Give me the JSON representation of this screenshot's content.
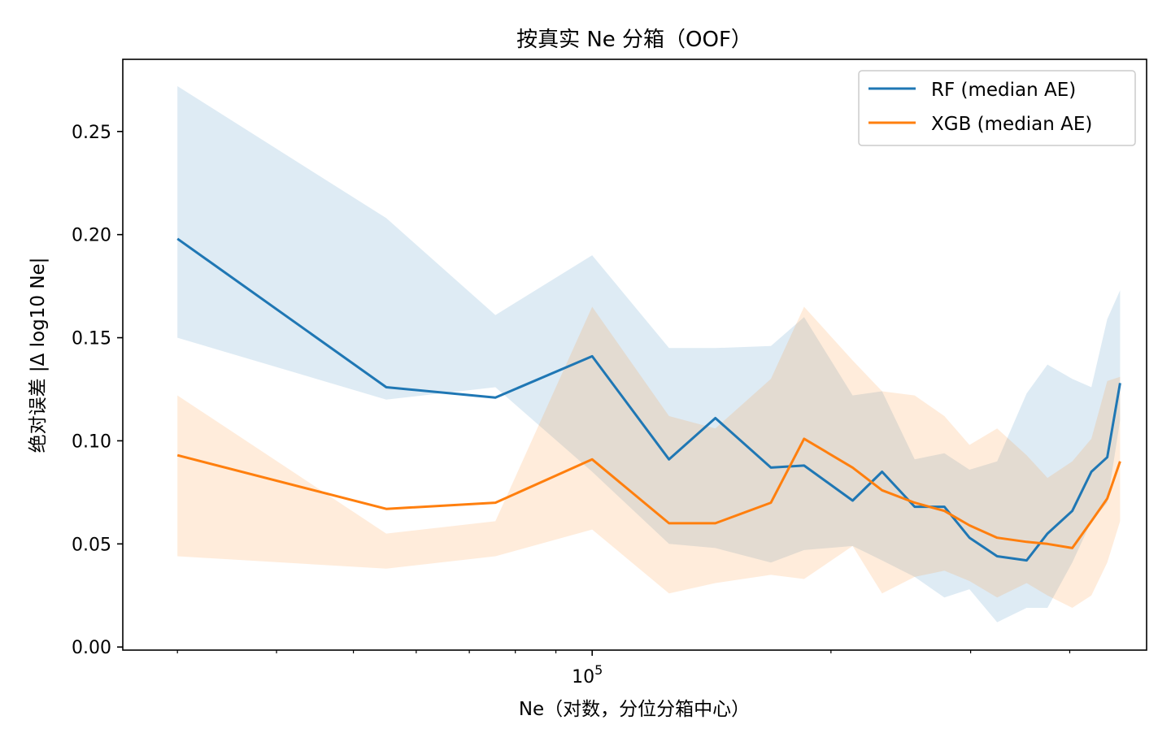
{
  "chart_data": {
    "type": "line",
    "title": "按真实 Ne 分箱（OOF）",
    "xlabel": "Ne（对数，分位分箱中心）",
    "ylabel": "绝对误差 |Δ log10 Ne|",
    "x_scale": "log",
    "xlim": [
      25600,
      500000
    ],
    "ylim": [
      -0.0015,
      0.285
    ],
    "x_major_ticks": [
      {
        "value": 100000,
        "base": "10",
        "exp": "5"
      }
    ],
    "x_minor_ticks": [
      30000,
      40000,
      50000,
      60000,
      70000,
      80000,
      90000,
      200000,
      300000,
      400000
    ],
    "y_ticks": [
      0.0,
      0.05,
      0.1,
      0.15,
      0.2,
      0.25
    ],
    "y_tick_labels": [
      "0.00",
      "0.05",
      "0.10",
      "0.15",
      "0.20",
      "0.25"
    ],
    "grid": false,
    "legend_position": "top-right",
    "x": [
      30000,
      55000,
      75500,
      100000,
      125000,
      143000,
      168000,
      185000,
      213000,
      232000,
      255000,
      278000,
      299000,
      324000,
      353000,
      375000,
      403000,
      426000,
      446000,
      463000
    ],
    "series": [
      {
        "name": "RF (median AE)",
        "color": "#1f77b4",
        "values": [
          0.198,
          0.126,
          0.121,
          0.141,
          0.091,
          0.111,
          0.087,
          0.088,
          0.071,
          0.085,
          0.068,
          0.068,
          0.053,
          0.044,
          0.042,
          0.055,
          0.066,
          0.085,
          0.092,
          0.128
        ],
        "band_upper": [
          0.272,
          0.208,
          0.161,
          0.19,
          0.145,
          0.145,
          0.146,
          0.16,
          0.122,
          0.124,
          0.091,
          0.094,
          0.086,
          0.09,
          0.123,
          0.137,
          0.13,
          0.126,
          0.159,
          0.173
        ],
        "band_lower": [
          0.15,
          0.12,
          0.126,
          0.085,
          0.05,
          0.048,
          0.041,
          0.047,
          0.049,
          0.042,
          0.034,
          0.024,
          0.028,
          0.012,
          0.019,
          0.019,
          0.041,
          0.061,
          0.07,
          0.11
        ]
      },
      {
        "name": "XGB (median AE)",
        "color": "#ff7f0e",
        "values": [
          0.093,
          0.067,
          0.07,
          0.091,
          0.06,
          0.06,
          0.07,
          0.101,
          0.087,
          0.076,
          0.07,
          0.066,
          0.059,
          0.053,
          0.051,
          0.05,
          0.048,
          0.061,
          0.072,
          0.09
        ],
        "band_upper": [
          0.122,
          0.055,
          0.061,
          0.165,
          0.112,
          0.106,
          0.13,
          0.165,
          0.139,
          0.124,
          0.122,
          0.112,
          0.098,
          0.106,
          0.093,
          0.082,
          0.09,
          0.101,
          0.129,
          0.131
        ],
        "band_lower": [
          0.044,
          0.038,
          0.044,
          0.057,
          0.026,
          0.031,
          0.035,
          0.033,
          0.049,
          0.026,
          0.034,
          0.037,
          0.032,
          0.024,
          0.031,
          0.025,
          0.019,
          0.025,
          0.041,
          0.061
        ]
      }
    ]
  }
}
